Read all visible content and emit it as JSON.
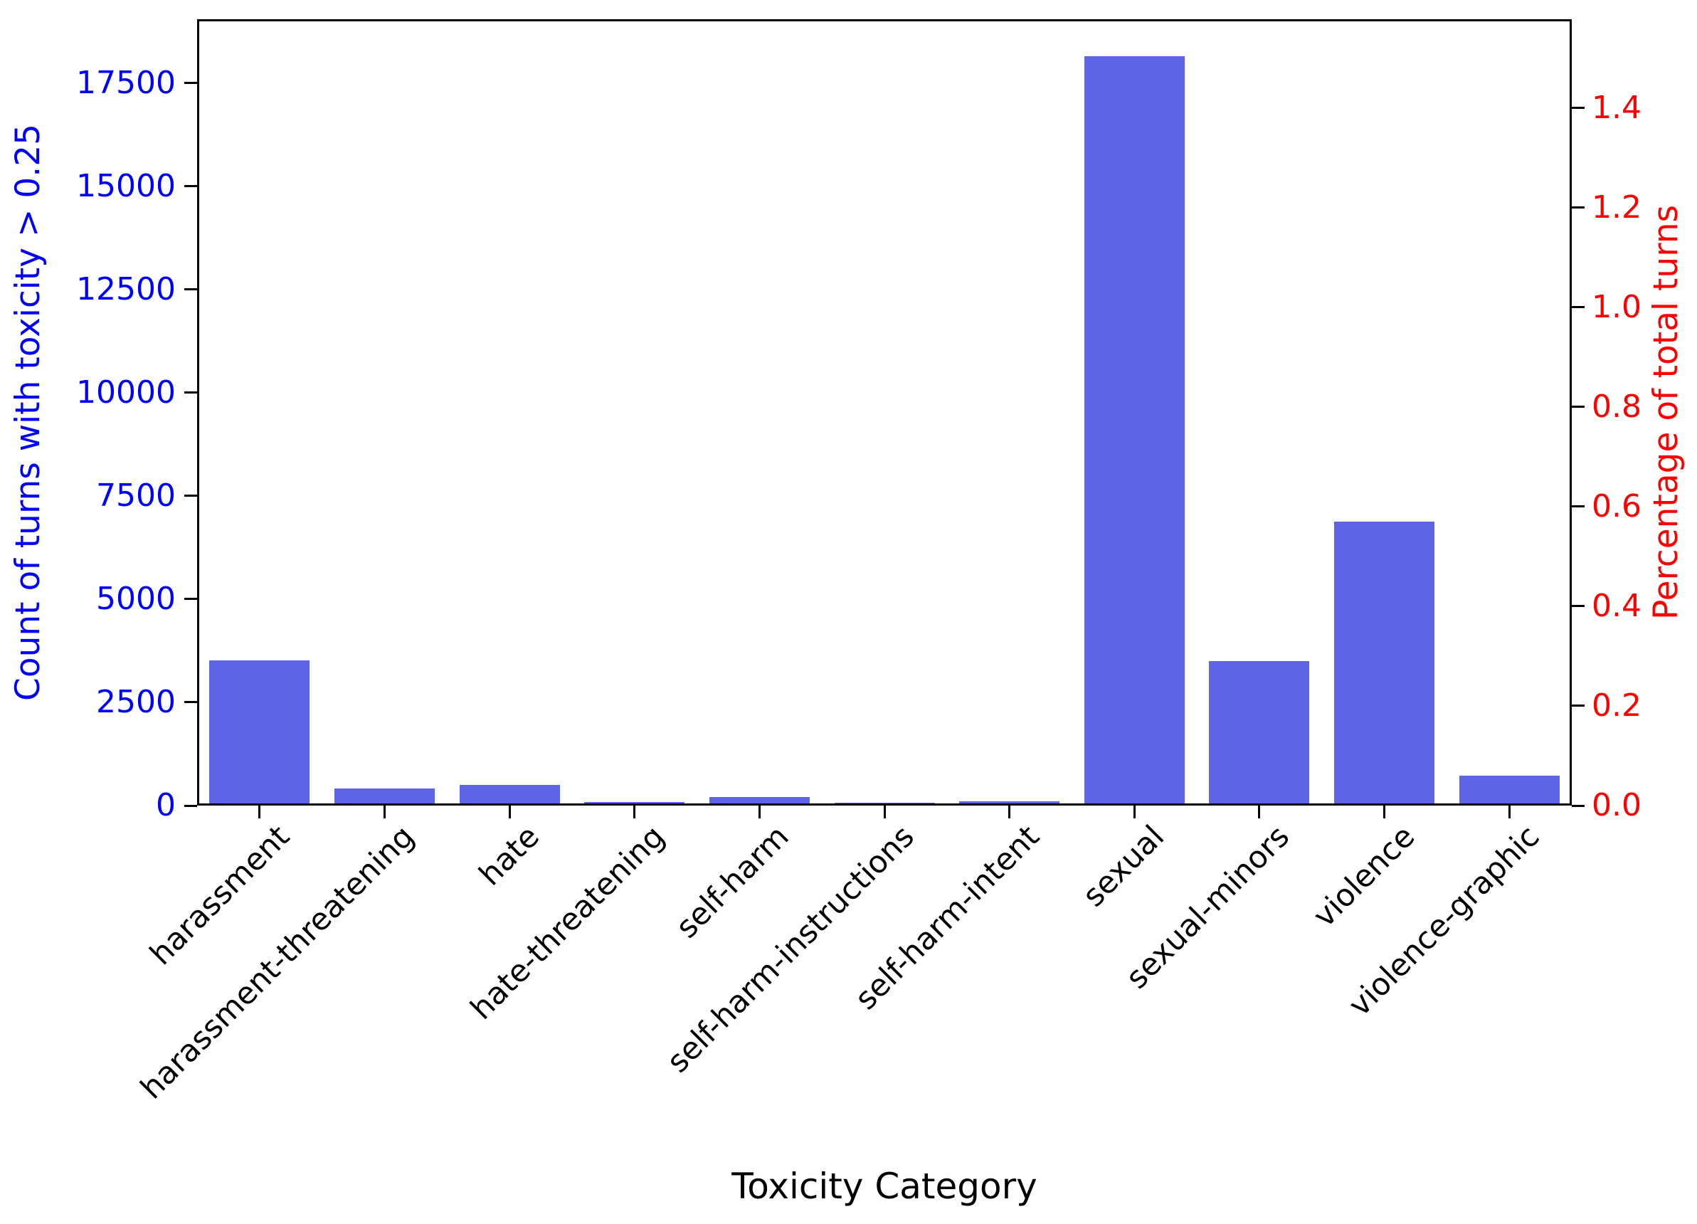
{
  "chart_data": {
    "type": "bar",
    "title": "",
    "xlabel": "Toxicity Category",
    "ylabel_left": "Count of turns with toxicity > 0.25",
    "ylabel_right": "Percentage of total turns",
    "categories": [
      "harassment",
      "harassment-threatening",
      "hate",
      "hate-threatening",
      "self-harm",
      "self-harm-instructions",
      "self-harm-intent",
      "sexual",
      "sexual-minors",
      "violence",
      "violence-graphic"
    ],
    "values": [
      3520,
      410,
      500,
      85,
      210,
      65,
      100,
      18150,
      3500,
      6880,
      720
    ],
    "left_axis": {
      "ticks": [
        0,
        2500,
        5000,
        7500,
        10000,
        12500,
        15000,
        17500
      ],
      "max": 19050,
      "color": "#0000ff"
    },
    "right_axis": {
      "ticks": [
        "0.0",
        "0.2",
        "0.4",
        "0.6",
        "0.8",
        "1.0",
        "1.2",
        "1.4"
      ],
      "max": 1.578,
      "color": "#ff0000"
    },
    "bar_color": "#5f63e6",
    "grid": false,
    "legend": null,
    "x_tick_rotation_deg": 45
  }
}
